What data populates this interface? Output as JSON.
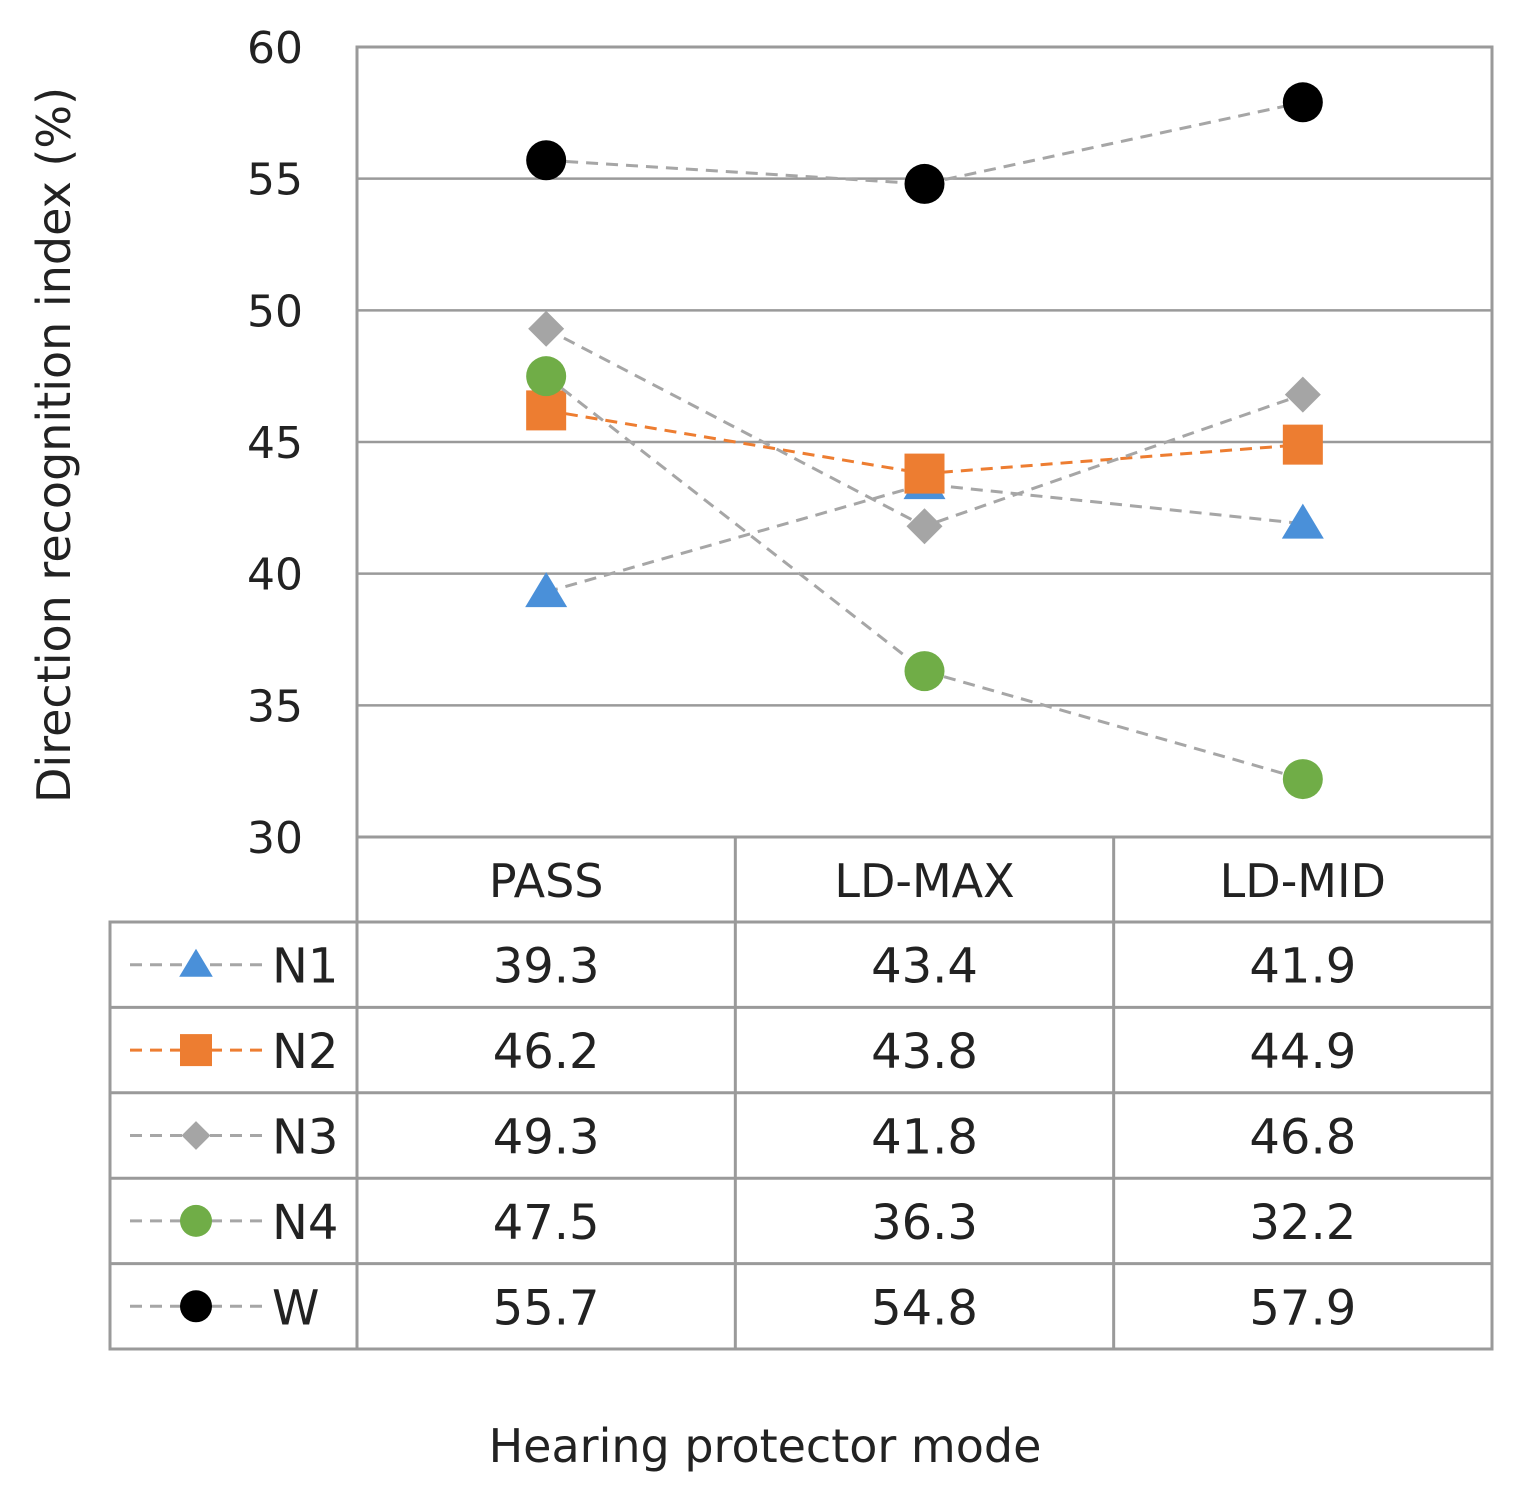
{
  "chart_data": {
    "type": "line",
    "title": "",
    "xlabel": "Hearing protector mode",
    "ylabel": "Direction recognition index (%)",
    "ylim": [
      30,
      60
    ],
    "yticks": [
      30,
      35,
      40,
      45,
      50,
      55,
      60
    ],
    "categories": [
      "PASS",
      "LD-MAX",
      "LD-MID"
    ],
    "grid": true,
    "data_table": true,
    "series": [
      {
        "name": "N1",
        "values": [
          39.3,
          43.4,
          41.9
        ],
        "labels": [
          "39.3",
          "43.4",
          "41.9"
        ],
        "marker": "triangle",
        "color": "#4a90d9",
        "line_color": "#a6a6a6"
      },
      {
        "name": "N2",
        "values": [
          46.2,
          43.8,
          44.9
        ],
        "labels": [
          "46.2",
          "43.8",
          "44.9"
        ],
        "marker": "square",
        "color": "#ed7d31",
        "line_color": "#ed7d31"
      },
      {
        "name": "N3",
        "values": [
          49.3,
          41.8,
          46.8
        ],
        "labels": [
          "49.3",
          "41.8",
          "46.8"
        ],
        "marker": "diamond",
        "color": "#a5a5a5",
        "line_color": "#a6a6a6"
      },
      {
        "name": "N4",
        "values": [
          47.5,
          36.3,
          32.2
        ],
        "labels": [
          "47.5",
          "36.3",
          "32.2"
        ],
        "marker": "circle",
        "color": "#70ad47",
        "line_color": "#a6a6a6"
      },
      {
        "name": "W",
        "values": [
          55.7,
          54.8,
          57.9
        ],
        "labels": [
          "55.7",
          "54.8",
          "57.9"
        ],
        "marker": "circle",
        "color": "#000000",
        "line_color": "#a6a6a6"
      }
    ]
  }
}
